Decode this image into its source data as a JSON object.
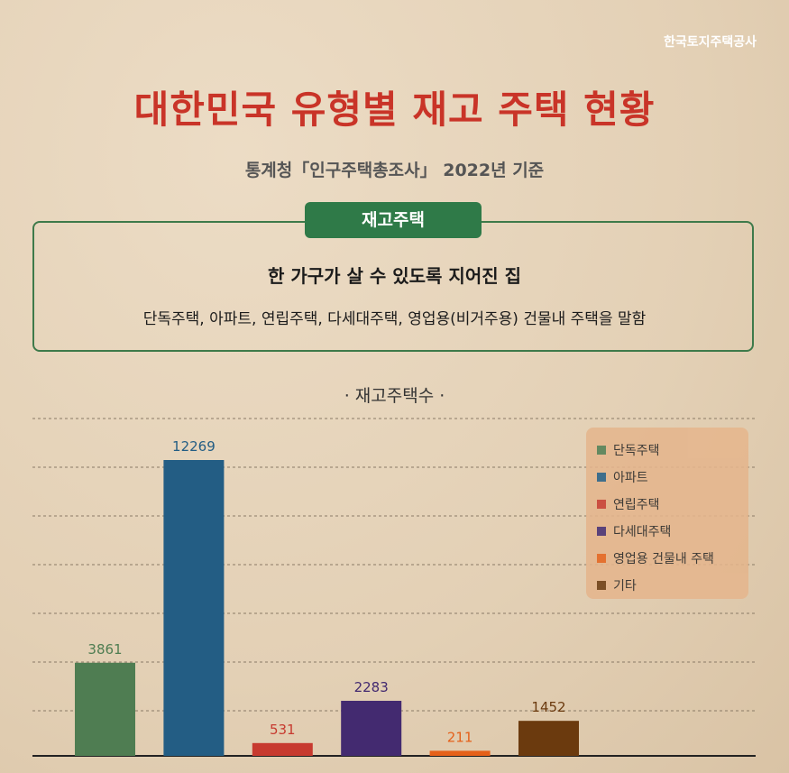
{
  "brand": "한국토지주택공사",
  "title": "대한민국 유형별 재고 주택 현황",
  "subtitle": "통계청「인구주택총조사」 2022년 기준",
  "definition": {
    "tag": "재고주택",
    "headline": "한 가구가 살 수 있도록 지어진 집",
    "description": "단독주택, 아파트, 연립주택, 다세대주택, 영업용(비거주용) 건물내 주택을 말함"
  },
  "chart_data": {
    "type": "bar",
    "title": "· 재고주택수 ·",
    "categories": [
      "단독주택",
      "아파트",
      "연립주택",
      "다세대주택",
      "영업용 건물내 주택",
      "기타"
    ],
    "values": [
      3861,
      12269,
      531,
      2283,
      211,
      1452
    ],
    "value_labels": [
      "3861",
      "12269",
      "531",
      "2283",
      "211",
      "1452"
    ],
    "colors": [
      "#4f7d52",
      "#235d84",
      "#c73a2f",
      "#432a70",
      "#e5611a",
      "#6b3a0e"
    ],
    "ylim": [
      0,
      14000
    ],
    "grid": true,
    "legend": "top-right"
  }
}
